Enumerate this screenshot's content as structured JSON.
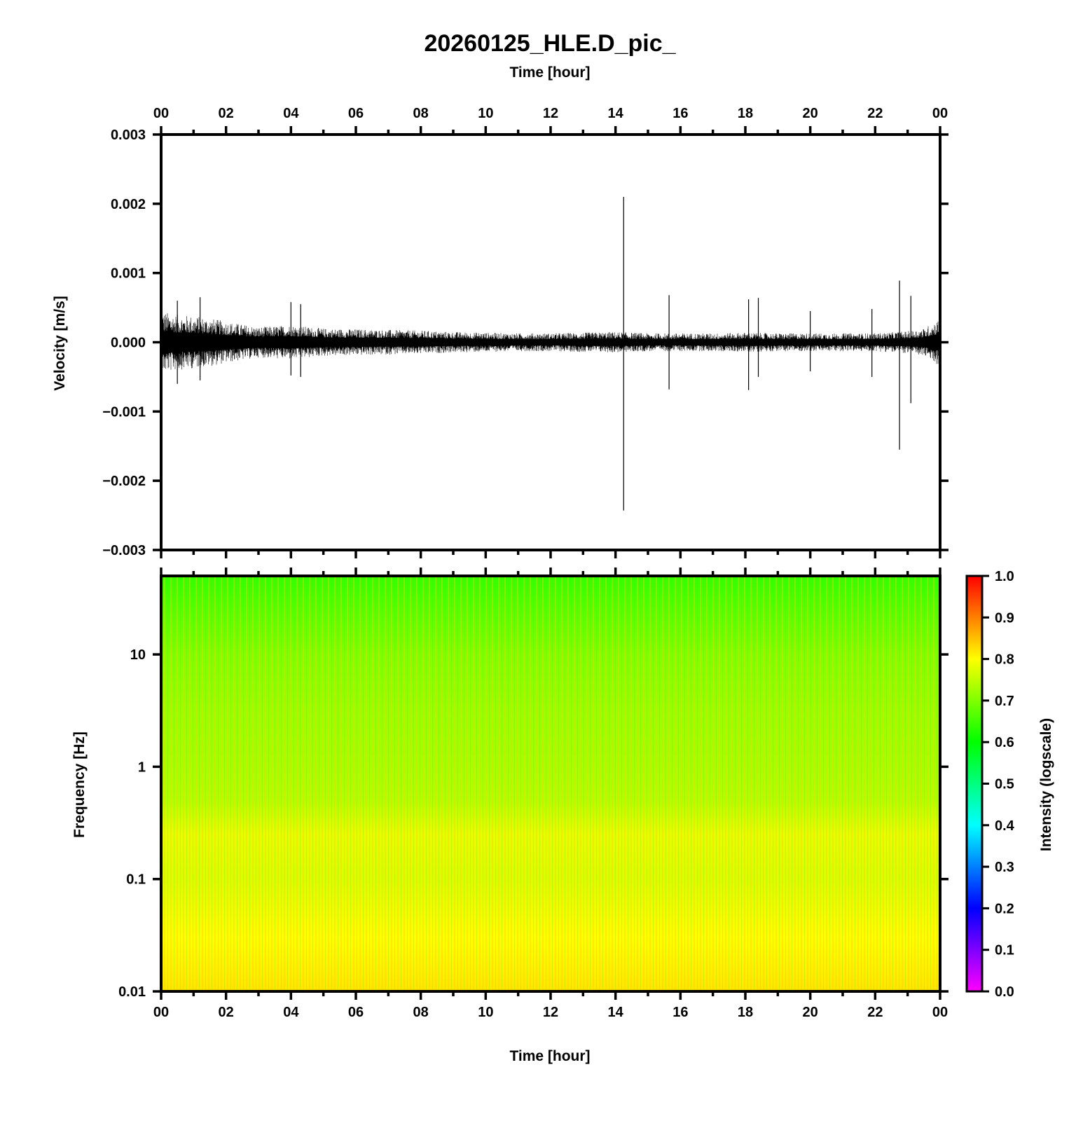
{
  "title": "20260125_HLE.D_pic_",
  "chart_data": [
    {
      "type": "line",
      "panel": "waveform",
      "xlabel": "Time [hour]",
      "ylabel": "Velocity [m/s]",
      "x_ticks": [
        "00",
        "02",
        "04",
        "06",
        "08",
        "10",
        "12",
        "14",
        "16",
        "18",
        "20",
        "22",
        "00"
      ],
      "xlim": [
        0,
        24
      ],
      "ylim": [
        -0.003,
        0.003
      ],
      "y_ticks": [
        "0.003",
        "0.002",
        "0.001",
        "0.000",
        "−0.001",
        "−0.002",
        "−0.003"
      ],
      "y_tick_values": [
        0.003,
        0.002,
        0.001,
        0.0,
        -0.001,
        -0.002,
        -0.003
      ],
      "envelope": {
        "hours": [
          0,
          0.5,
          1,
          1.5,
          2,
          3,
          4,
          5,
          6,
          7,
          8,
          9,
          10,
          11,
          12,
          13,
          14,
          15,
          16,
          17,
          18,
          19,
          20,
          21,
          22,
          23,
          23.5,
          24
        ],
        "upper": [
          0.00045,
          0.0004,
          0.00038,
          0.00035,
          0.0003,
          0.00022,
          0.00025,
          0.0002,
          0.00019,
          0.00018,
          0.00017,
          0.00015,
          0.00014,
          0.00013,
          0.00013,
          0.00014,
          0.00015,
          0.00013,
          0.00013,
          0.00013,
          0.00014,
          0.00013,
          0.00013,
          0.00013,
          0.00013,
          0.00016,
          0.0002,
          0.00035
        ],
        "lower": [
          -0.00045,
          -0.0004,
          -0.00038,
          -0.00035,
          -0.0003,
          -0.00022,
          -0.00025,
          -0.0002,
          -0.00019,
          -0.00018,
          -0.00017,
          -0.00015,
          -0.00014,
          -0.00013,
          -0.00013,
          -0.00014,
          -0.00015,
          -0.00013,
          -0.00013,
          -0.00013,
          -0.00014,
          -0.00013,
          -0.00013,
          -0.00013,
          -0.00013,
          -0.00016,
          -0.0002,
          -0.00035
        ]
      },
      "spikes": [
        {
          "hour": 0.5,
          "max": 0.0006,
          "min": -0.0006
        },
        {
          "hour": 1.2,
          "max": 0.00065,
          "min": -0.00055
        },
        {
          "hour": 4.0,
          "max": 0.00058,
          "min": -0.00048
        },
        {
          "hour": 4.3,
          "max": 0.00055,
          "min": -0.0005
        },
        {
          "hour": 14.25,
          "max": 0.0021,
          "min": -0.00243
        },
        {
          "hour": 15.65,
          "max": 0.00068,
          "min": -0.00068
        },
        {
          "hour": 18.1,
          "max": 0.00062,
          "min": -0.00069
        },
        {
          "hour": 18.4,
          "max": 0.00064,
          "min": -0.0005
        },
        {
          "hour": 20.0,
          "max": 0.00045,
          "min": -0.00042
        },
        {
          "hour": 21.9,
          "max": 0.00048,
          "min": -0.0005
        },
        {
          "hour": 22.75,
          "max": 0.00089,
          "min": -0.00155
        },
        {
          "hour": 23.1,
          "max": 0.00067,
          "min": -0.00088
        }
      ]
    },
    {
      "type": "heatmap",
      "panel": "spectrogram",
      "xlabel": "Time [hour]",
      "ylabel": "Frequency [Hz]",
      "x_ticks": [
        "00",
        "02",
        "04",
        "06",
        "08",
        "10",
        "12",
        "14",
        "16",
        "18",
        "20",
        "22",
        "00"
      ],
      "xlim": [
        0,
        24
      ],
      "y_scale": "log",
      "ylim": [
        0.01,
        50
      ],
      "y_ticks": [
        "10",
        "1",
        "0.1",
        "0.01"
      ],
      "y_tick_values": [
        10,
        1,
        0.1,
        0.01
      ],
      "intensity_profile": {
        "freq_hz": [
          0.01,
          0.03,
          0.1,
          0.25,
          0.5,
          1,
          3,
          10,
          30,
          50
        ],
        "intensity": [
          0.82,
          0.8,
          0.77,
          0.78,
          0.74,
          0.73,
          0.72,
          0.7,
          0.66,
          0.64
        ]
      },
      "colorbar": {
        "label": "Intensity (logscale)",
        "range": [
          0,
          1
        ],
        "ticks": [
          "1.0",
          "0.9",
          "0.8",
          "0.7",
          "0.6",
          "0.5",
          "0.4",
          "0.3",
          "0.2",
          "0.1",
          "0.0"
        ],
        "tick_values": [
          1.0,
          0.9,
          0.8,
          0.7,
          0.6,
          0.5,
          0.4,
          0.3,
          0.2,
          0.1,
          0.0
        ],
        "colors": [
          "#ff00ff",
          "#0000ff",
          "#00ffff",
          "#00ff00",
          "#ffff00",
          "#ff0000"
        ]
      }
    }
  ]
}
